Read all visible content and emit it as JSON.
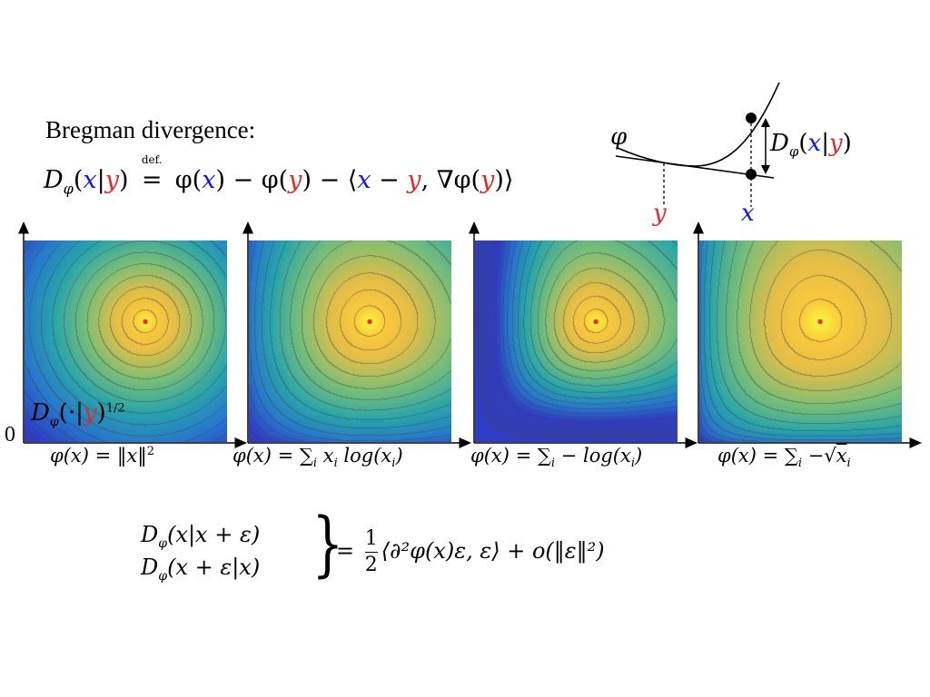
{
  "title": "Bregman divergence:",
  "definition": {
    "lhs_D": "D",
    "lhs_sub": "φ",
    "lhs_open": "(",
    "lhs_x": "x",
    "lhs_bar": "|",
    "lhs_y": "y",
    "lhs_close": ")",
    "defeq": "≝",
    "defeq_text": "def.",
    "rhs_phi_x_open": " φ(",
    "rhs_x1": "x",
    "rhs_mid1": ") − φ(",
    "rhs_y1": "y",
    "rhs_mid2": ") − ⟨",
    "rhs_x2": "x",
    "rhs_minus": " − ",
    "rhs_y2": "y",
    "rhs_mid3": ", ∇φ(",
    "rhs_y3": "y",
    "rhs_end": ")⟩"
  },
  "inset": {
    "phi_label": "φ",
    "y_label": "y",
    "x_label": "x",
    "div_D": "D",
    "div_sub": "φ",
    "div_open": "(",
    "div_x": "x",
    "div_bar": "|",
    "div_y": "y",
    "div_close": ")"
  },
  "panels": [
    {
      "caption_html_parts": [
        "φ(x) = ‖x‖",
        "2"
      ],
      "kind": "sq",
      "center": [
        0.6,
        0.6
      ]
    },
    {
      "caption_html_parts": [
        "φ(x) = ∑",
        "i",
        " x",
        "i",
        " log(x",
        "i",
        ")"
      ],
      "kind": "ent",
      "center": [
        0.6,
        0.6
      ]
    },
    {
      "caption_html_parts": [
        "φ(x) = ∑",
        "i",
        " − log(x",
        "i",
        ")"
      ],
      "kind": "neglog",
      "center": [
        0.6,
        0.6
      ]
    },
    {
      "caption_html_parts": [
        "φ(x) = ∑",
        "i",
        " −√",
        "x",
        "i"
      ],
      "kind": "sqrt",
      "center": [
        0.6,
        0.6
      ]
    }
  ],
  "origin_label": "0",
  "panel1_label": {
    "D": "D",
    "sub": "φ",
    "open": "(·|",
    "y": "y",
    "close": ")",
    "sup": "1/2"
  },
  "bottom_formula": {
    "line1_D": "D",
    "line1_sub": "φ",
    "line1_rest": "(x|x + ε)",
    "line2_D": "D",
    "line2_sub": "φ",
    "line2_rest": "(x + ε|x)",
    "brace": "}",
    "eq": "=",
    "frac_num": "1",
    "frac_den": "2",
    "rhs": "⟨∂²φ(x)ε, ε⟩ + o(‖ε‖²)"
  },
  "colors": {
    "blue": "#1515e6",
    "red": "#e02a2a",
    "contour": "#5a5a5a"
  }
}
